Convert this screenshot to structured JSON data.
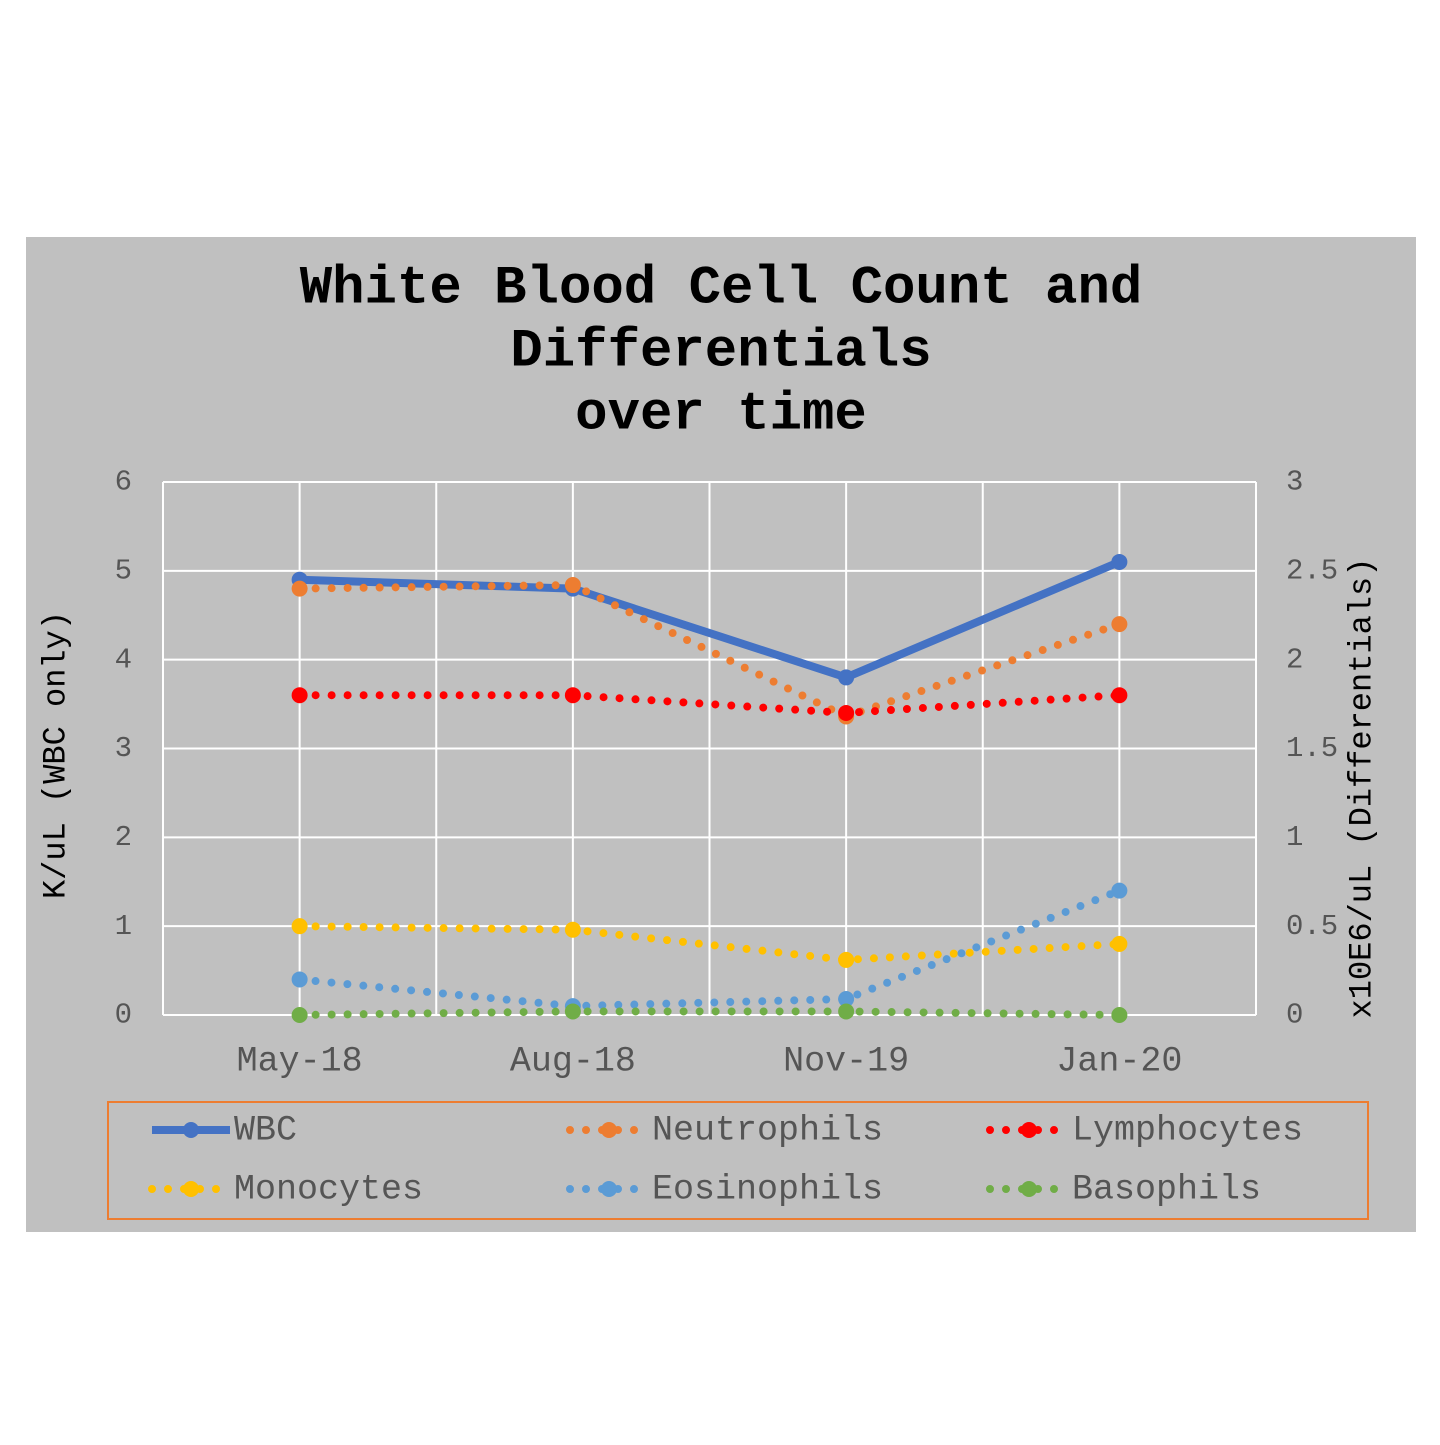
{
  "chart_data": {
    "type": "line",
    "title": [
      "White Blood Cell Count and",
      "Differentials",
      "over time"
    ],
    "y_label": "K/uL  (WBC only)",
    "y2_label": "x10E6/uL  (Differentials)",
    "categories": [
      "May-18",
      "Aug-18",
      "Nov-19",
      "Jan-20"
    ],
    "series": [
      {
        "name": "WBC",
        "color": "#4472c4",
        "style": "solid",
        "values": [
          4.9,
          4.8,
          3.8,
          5.1
        ]
      },
      {
        "name": "Neutrophils",
        "color": "#ed7d31",
        "style": "dotted",
        "axis": "y2",
        "values": [
          2.4,
          2.42,
          1.68,
          2.2
        ]
      },
      {
        "name": "Lymphocytes",
        "color": "#ff0000",
        "style": "dotted",
        "axis": "y2",
        "values": [
          1.8,
          1.8,
          1.7,
          1.8
        ]
      },
      {
        "name": "Monocytes",
        "color": "#ffc000",
        "style": "dotted",
        "axis": "y2",
        "values": [
          0.5,
          0.48,
          0.31,
          0.4
        ]
      },
      {
        "name": "Eosinophils",
        "color": "#5b9bd5",
        "style": "dotted",
        "axis": "y2",
        "values": [
          0.2,
          0.05,
          0.09,
          0.7
        ]
      },
      {
        "name": "Basophils",
        "color": "#70ad47",
        "style": "dotted",
        "axis": "y2",
        "values": [
          0,
          0.02,
          0.02,
          0
        ]
      }
    ],
    "ylim": [
      0,
      6
    ],
    "yticks": [
      0,
      1,
      2,
      3,
      4,
      5,
      6
    ],
    "y2lim": [
      0,
      3
    ],
    "y2ticks": [
      0,
      0.5,
      1,
      1.5,
      2,
      2.5,
      3
    ],
    "grid": true,
    "legend": "bottom"
  }
}
